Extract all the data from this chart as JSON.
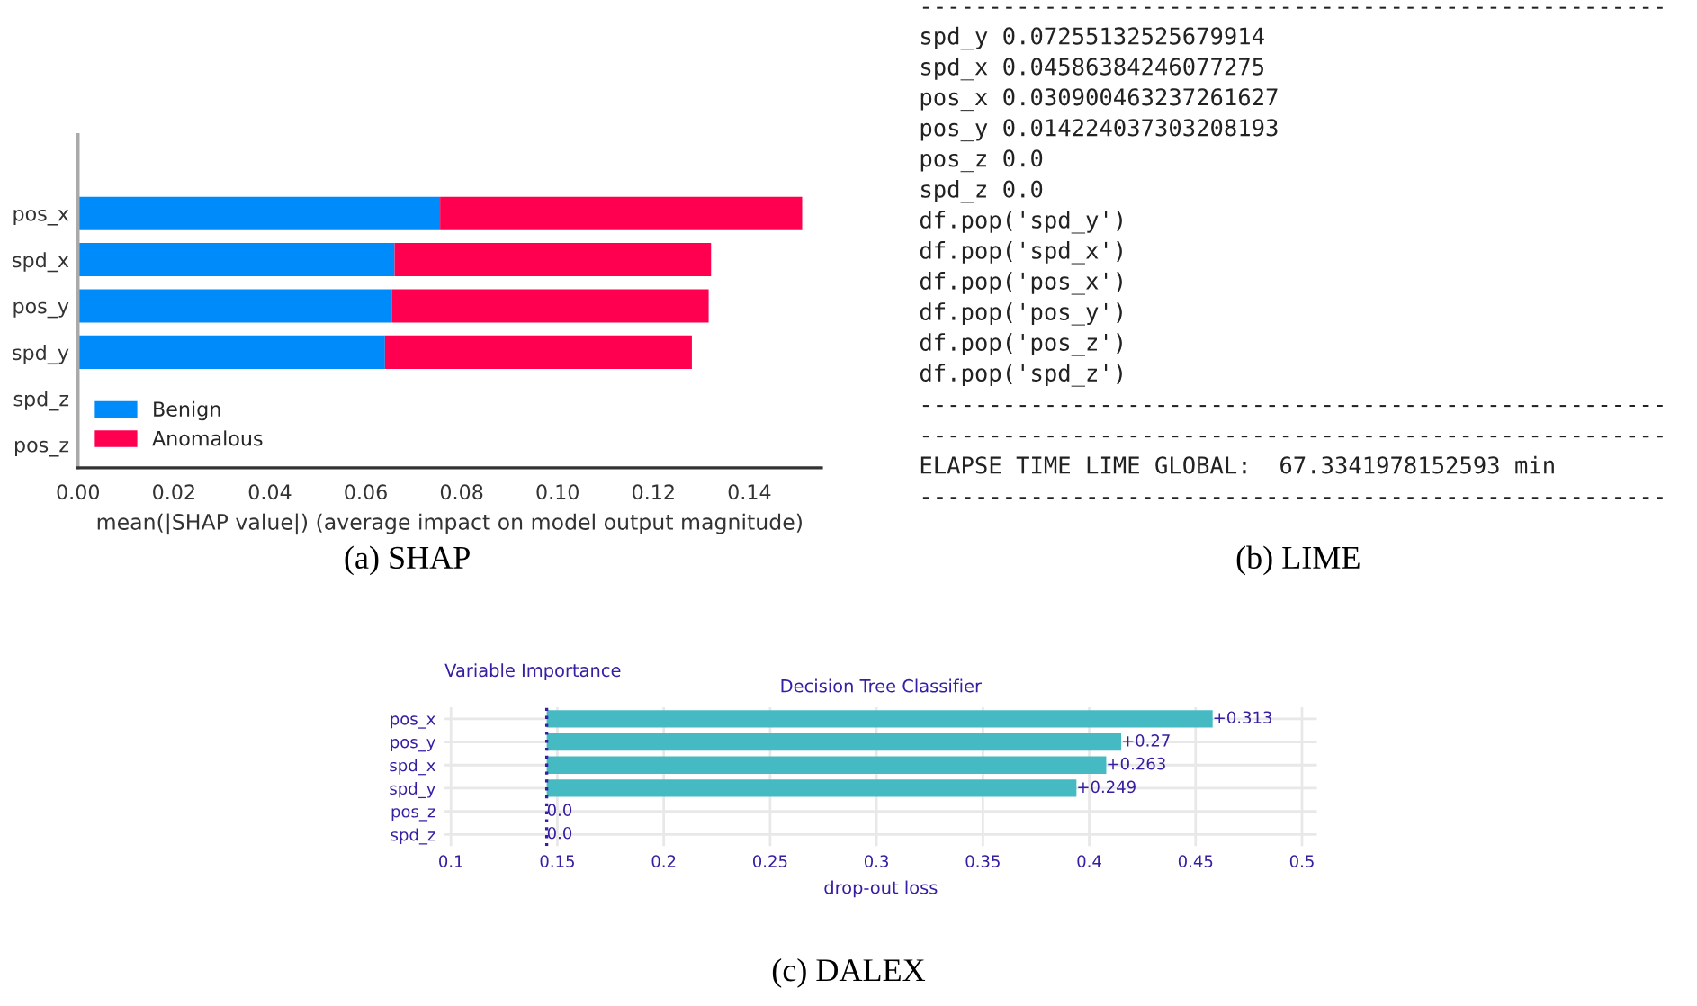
{
  "chart_data": [
    {
      "type": "bar",
      "orientation": "horizontal",
      "stacked": true,
      "categories": [
        "pos_x",
        "spd_x",
        "pos_y",
        "spd_y",
        "spd_z",
        "pos_z"
      ],
      "series": [
        {
          "name": "Benign",
          "color": "#008bfb",
          "values": [
            0.0755,
            0.066,
            0.0655,
            0.064,
            0,
            0
          ]
        },
        {
          "name": "Anomalous",
          "color": "#ff0051",
          "values": [
            0.0755,
            0.066,
            0.066,
            0.064,
            0,
            0
          ]
        }
      ],
      "xlim": [
        0,
        0.155
      ],
      "xticks": [
        {
          "value": 0,
          "label": "0.00"
        },
        {
          "value": 0.02,
          "label": "0.02"
        },
        {
          "value": 0.04,
          "label": "0.04"
        },
        {
          "value": 0.06,
          "label": "0.06"
        },
        {
          "value": 0.08,
          "label": "0.08"
        },
        {
          "value": 0.1,
          "label": "0.10"
        },
        {
          "value": 0.12,
          "label": "0.12"
        },
        {
          "value": 0.14,
          "label": "0.14"
        }
      ],
      "xlabel": "mean(|SHAP value|) (average impact on model output magnitude)",
      "legend": "bottom left",
      "annotations": [
        "(a) SHAP"
      ]
    },
    {
      "type": "other",
      "annotations": [
        "------------------------------------------------------",
        "spd_y 0.07255132525679914",
        "spd_x 0.04586384246077275",
        "pos_x 0.030900463237261627",
        "pos_y 0.014224037303208193",
        "pos_z 0.0",
        "spd_z 0.0",
        "df.pop('spd_y')",
        "df.pop('spd_x')",
        "df.pop('pos_x')",
        "df.pop('pos_y')",
        "df.pop('pos_z')",
        "df.pop('spd_z')",
        "------------------------------------------------------",
        "------------------------------------------------------",
        "ELAPSE TIME LIME GLOBAL:  67.3341978152593 min",
        "------------------------------------------------------",
        "(b) LIME"
      ]
    },
    {
      "type": "bar",
      "orientation": "horizontal",
      "title": "Variable Importance",
      "subtitle": "Decision Tree Classifier",
      "xlabel": "drop-out loss",
      "categories": [
        "pos_x",
        "pos_y",
        "spd_x",
        "spd_y",
        "pos_z",
        "spd_z"
      ],
      "series": [
        {
          "color": "#46bac2",
          "values": [
            0.313,
            0.27,
            0.263,
            0.249,
            0.0,
            0.0
          ],
          "base": [
            0.145,
            0.145,
            0.145,
            0.145,
            null,
            null
          ]
        }
      ],
      "value_labels": [
        "+0.313",
        "+0.27",
        "+0.263",
        "+0.249",
        "0.0",
        "0.0"
      ],
      "xlim": [
        0.097,
        0.507
      ],
      "xticks": [
        0.1,
        0.15,
        0.2,
        0.25,
        0.3,
        0.35,
        0.4,
        0.45,
        0.5
      ],
      "ref_lines": [
        {
          "axis": "x",
          "value": 0.145,
          "color": "#371ea3",
          "line_style": "dotted"
        }
      ],
      "grid": true,
      "annotations": [
        "(c) DALEX"
      ]
    }
  ]
}
